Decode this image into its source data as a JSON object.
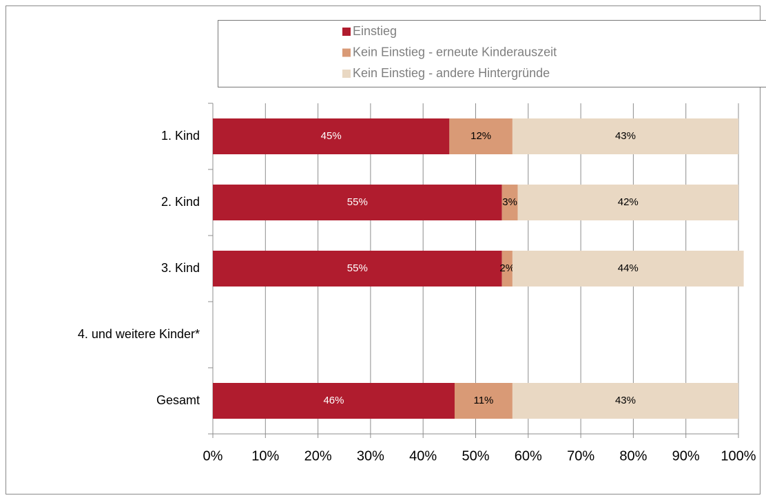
{
  "chart_data": {
    "type": "stacked_barh",
    "categories": [
      "1. Kind",
      "2. Kind",
      "3. Kind",
      "4. und weitere Kinder*",
      "Gesamt"
    ],
    "series": [
      {
        "name": "Einstieg",
        "color": "#b01c2e",
        "values": [
          45,
          55,
          55,
          null,
          46
        ],
        "value_labels": [
          "45%",
          "55%",
          "55%",
          null,
          "46%"
        ]
      },
      {
        "name": "Kein Einstieg - erneute Kinderauszeit",
        "color": "#d99a76",
        "values": [
          12,
          3,
          2,
          null,
          11
        ],
        "value_labels": [
          "12%",
          "3%",
          "2%",
          null,
          "11%"
        ]
      },
      {
        "name": "Kein Einstieg - andere Hintergründe",
        "color": "#e9d8c3",
        "values": [
          43,
          42,
          44,
          null,
          43
        ],
        "value_labels": [
          "43%",
          "42%",
          "44%",
          null,
          "43%"
        ]
      }
    ],
    "xlim": [
      0,
      100
    ],
    "xticks": [
      {
        "value": 0,
        "label": "0%"
      },
      {
        "value": 10,
        "label": "10%"
      },
      {
        "value": 20,
        "label": "20%"
      },
      {
        "value": 30,
        "label": "30%"
      },
      {
        "value": 40,
        "label": "40%"
      },
      {
        "value": 50,
        "label": "50%"
      },
      {
        "value": 60,
        "label": "60%"
      },
      {
        "value": 70,
        "label": "70%"
      },
      {
        "value": 80,
        "label": "80%"
      },
      {
        "value": 90,
        "label": "90%"
      },
      {
        "value": 100,
        "label": "100%"
      }
    ],
    "grid": true,
    "legend": "top"
  }
}
